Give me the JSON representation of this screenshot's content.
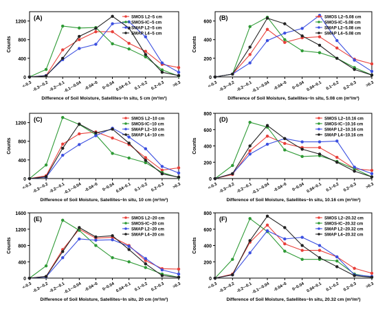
{
  "categories": [
    "<-0.3",
    "-0.3~-0.2",
    "-0.2~-0.1",
    "-0.1~-0.04",
    "-0.04~0",
    "0~0.04",
    "0.04~0.1",
    "0.1~0.2",
    "0.2~0.3",
    ">0.3"
  ],
  "colors": {
    "SMOS L2": "#e8403a",
    "SMOS-IC": "#2e9a35",
    "SMAP L2": "#3b4fe0",
    "SMAP L4": "#222222"
  },
  "chart_data": [
    {
      "type": "line",
      "panel": "(A)",
      "ylabel": "Counts",
      "xlabel": "Difference of Soil Moisture, Satellites−In situ, 5 cm (m³/m³)",
      "ylim": [
        0,
        1400
      ],
      "yticks": [
        0,
        400,
        800,
        1200
      ],
      "categories": [
        "<-0.3",
        "-0.3~-0.2",
        "-0.2~-0.1",
        "-0.1~-0.04",
        "-0.04~0",
        "0~0.04",
        "0.04~0.1",
        "0.1~0.2",
        "0.2~0.3",
        ">0.3"
      ],
      "series": [
        {
          "name": "SMOS L2−5 cm",
          "values": [
            0,
            30,
            580,
            800,
            970,
            970,
            720,
            550,
            270,
            200
          ]
        },
        {
          "name": "SMOS-IC−5 cm",
          "values": [
            0,
            160,
            1090,
            1050,
            1060,
            710,
            600,
            430,
            150,
            20
          ]
        },
        {
          "name": "SMAP L2−5 cm",
          "values": [
            0,
            30,
            370,
            610,
            700,
            1140,
            1180,
            860,
            300,
            100
          ]
        },
        {
          "name": "SMAP L4−5 cm",
          "values": [
            0,
            20,
            400,
            870,
            1040,
            1300,
            1050,
            480,
            100,
            30
          ]
        }
      ]
    },
    {
      "type": "line",
      "panel": "(B)",
      "ylabel": "Counts",
      "xlabel": "Difference of Soil Moisture, Satellites−In situ, 5.08 cm (m³/m³)",
      "ylim": [
        0,
        700
      ],
      "yticks": [
        0,
        200,
        400,
        600
      ],
      "categories": [
        "<-0.3",
        "-0.3~-0.2",
        "-0.2~-0.1",
        "-0.1~-0.04",
        "-0.04~0",
        "0~0.04",
        "0.04~0.1",
        "0.1~0.2",
        "0.2~0.3",
        ">0.3"
      ],
      "series": [
        {
          "name": "SMOS L2−5.08 cm",
          "values": [
            0,
            30,
            240,
            510,
            370,
            420,
            430,
            310,
            190,
            140
          ]
        },
        {
          "name": "SMOS-IC−5.08 cm",
          "values": [
            0,
            30,
            540,
            640,
            400,
            280,
            260,
            200,
            100,
            20
          ]
        },
        {
          "name": "SMAP L2−5.08 cm",
          "values": [
            0,
            30,
            150,
            390,
            470,
            520,
            660,
            390,
            180,
            60
          ]
        },
        {
          "name": "SMAP L4−5.08 cm",
          "values": [
            0,
            30,
            320,
            630,
            570,
            440,
            340,
            200,
            80,
            20
          ]
        }
      ]
    },
    {
      "type": "line",
      "panel": "(C)",
      "ylabel": "Counts",
      "xlabel": "Difference of Soil Moisture, Satellites−In situ, 10 cm (m³/m³)",
      "ylim": [
        0,
        1400
      ],
      "yticks": [
        0,
        400,
        800,
        1200
      ],
      "categories": [
        "<-0.3",
        "-0.3~-0.2",
        "-0.2~-0.1",
        "-0.1~-0.04",
        "-0.04~0",
        "0~0.04",
        "0.04~0.1",
        "0.1~0.2",
        "0.2~0.3",
        ">0.3"
      ],
      "series": [
        {
          "name": "SMOS L2−10 cm",
          "values": [
            0,
            60,
            740,
            960,
            1000,
            870,
            730,
            450,
            180,
            230
          ]
        },
        {
          "name": "SMOS-IC−10 cm",
          "values": [
            0,
            290,
            1310,
            1160,
            940,
            540,
            440,
            340,
            130,
            20
          ]
        },
        {
          "name": "SMAP L2−10 cm",
          "values": [
            0,
            30,
            500,
            730,
            920,
            1080,
            890,
            640,
            260,
            120
          ]
        },
        {
          "name": "SMAP L4−10 cm",
          "values": [
            0,
            40,
            650,
            1170,
            980,
            1060,
            760,
            390,
            100,
            30
          ]
        }
      ]
    },
    {
      "type": "line",
      "panel": "(D)",
      "ylabel": "Counts",
      "xlabel": "Difference of Soil Moisture, Satellites−In situ, 10.16 cm (m³/m³)",
      "ylim": [
        0,
        800
      ],
      "yticks": [
        0,
        200,
        400,
        600,
        800
      ],
      "categories": [
        "<-0.3",
        "-0.3~-0.2",
        "-0.2~-0.1",
        "-0.1~-0.04",
        "-0.04~0",
        "0~0.04",
        "0.04~0.1",
        "0.1~0.2",
        "0.2~0.3",
        ">0.3"
      ],
      "series": [
        {
          "name": "SMOS L2−10.16 cm",
          "values": [
            0,
            50,
            340,
            520,
            430,
            380,
            380,
            260,
            120,
            100
          ]
        },
        {
          "name": "SMOS-IC−10.16 cm",
          "values": [
            0,
            160,
            690,
            630,
            350,
            270,
            280,
            210,
            120,
            20
          ]
        },
        {
          "name": "SMAP L2−10.16 cm",
          "values": [
            0,
            60,
            300,
            420,
            490,
            450,
            450,
            460,
            140,
            60
          ]
        },
        {
          "name": "SMAP L4−10.16 cm",
          "values": [
            0,
            60,
            400,
            650,
            490,
            360,
            300,
            200,
            90,
            20
          ]
        }
      ]
    },
    {
      "type": "line",
      "panel": "(E)",
      "ylabel": "Counts",
      "xlabel": "Difference of Soil Moisture, Satellites−In situ, 20 cm (m³/m³)",
      "ylim": [
        0,
        1600
      ],
      "yticks": [
        0,
        400,
        800,
        1200,
        1600
      ],
      "categories": [
        "<-0.3",
        "-0.3~-0.2",
        "-0.2~-0.1",
        "-0.1~-0.04",
        "-0.04~0",
        "0~0.04",
        "0.04~0.1",
        "0.1~0.2",
        "0.2~0.3",
        ">0.3"
      ],
      "series": [
        {
          "name": "SMOS L2−20 cm",
          "values": [
            0,
            40,
            700,
            1200,
            980,
            1000,
            800,
            430,
            230,
            220
          ]
        },
        {
          "name": "SMOS-IC−20 cm",
          "values": [
            0,
            300,
            1420,
            1170,
            800,
            500,
            400,
            260,
            100,
            20
          ]
        },
        {
          "name": "SMAP L2−20 cm",
          "values": [
            0,
            30,
            500,
            960,
            930,
            940,
            780,
            480,
            200,
            100
          ]
        },
        {
          "name": "SMAP L4−20 cm",
          "values": [
            0,
            40,
            650,
            1240,
            1010,
            1040,
            700,
            350,
            60,
            20
          ]
        }
      ]
    },
    {
      "type": "line",
      "panel": "(F)",
      "ylabel": "Counts",
      "xlabel": "Difference of Soil Moisture, Satellites−In situ, 20.32 cm (m³/m³)",
      "ylim": [
        0,
        800
      ],
      "yticks": [
        0,
        200,
        400,
        600,
        800
      ],
      "categories": [
        "<-0.3",
        "-0.3~-0.2",
        "-0.2~-0.1",
        "-0.1~-0.04",
        "-0.04~0",
        "0~0.04",
        "0.04~0.1",
        "0.1~0.2",
        "0.2~0.3",
        ">0.3"
      ],
      "series": [
        {
          "name": "SMOS L2−20.32 cm",
          "values": [
            0,
            50,
            440,
            650,
            420,
            340,
            340,
            260,
            120,
            60
          ]
        },
        {
          "name": "SMOS-IC−20.32 cm",
          "values": [
            0,
            230,
            730,
            570,
            330,
            230,
            230,
            210,
            50,
            10
          ]
        },
        {
          "name": "SMAP L2−20.32 cm",
          "values": [
            0,
            40,
            310,
            580,
            480,
            500,
            400,
            260,
            40,
            20
          ]
        },
        {
          "name": "SMAP L4−20.32 cm",
          "values": [
            0,
            40,
            460,
            760,
            620,
            400,
            250,
            140,
            30,
            10
          ]
        }
      ]
    }
  ]
}
